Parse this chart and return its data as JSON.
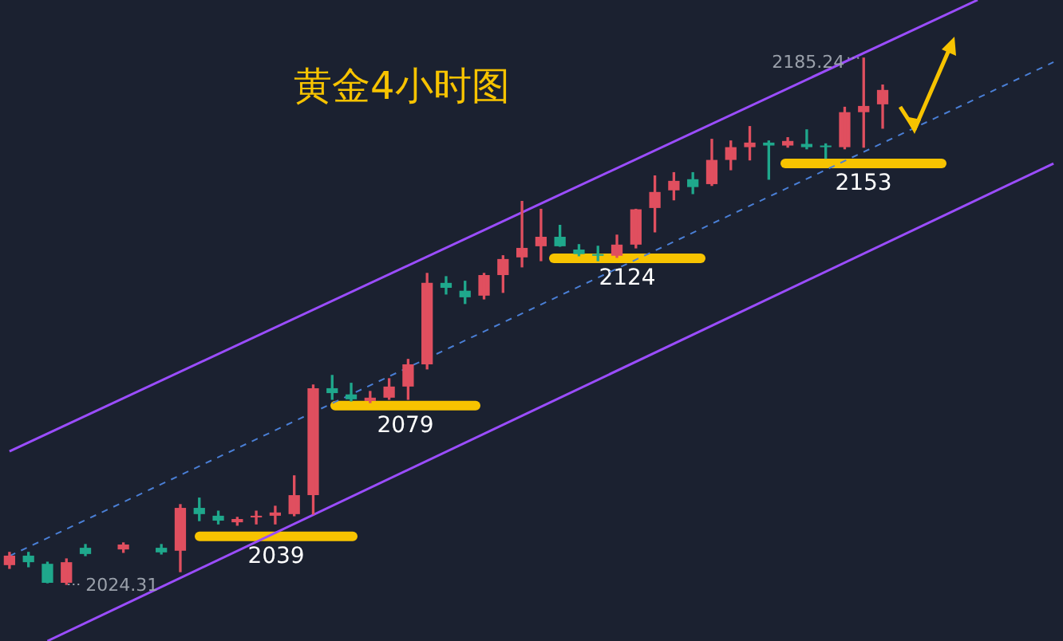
{
  "chart_data": {
    "type": "candlestick",
    "title": "黄金4小时图",
    "categories": [
      null,
      null,
      null,
      null,
      null,
      null,
      null,
      null,
      null,
      null,
      null,
      null,
      null,
      null,
      null,
      null,
      null,
      null,
      null,
      null,
      null,
      null,
      null,
      null,
      null,
      null,
      null,
      null,
      null,
      null,
      null,
      null,
      null,
      null,
      null,
      null,
      null,
      null,
      null,
      null,
      null,
      null,
      null,
      null,
      null,
      null,
      null,
      null,
      null,
      null,
      null,
      null,
      null,
      null,
      null,
      null
    ],
    "ohlc": [
      [
        2030.2,
        2034.1,
        2029.2,
        2033.1
      ],
      [
        2033.1,
        2034.1,
        2029.7,
        2031.1
      ],
      [
        2030.6,
        2031.1,
        2024.8,
        2024.8
      ],
      [
        2024.8,
        2032.1,
        2024.31,
        2031.1
      ],
      [
        2035.5,
        2036.5,
        2033.1,
        2033.6
      ],
      null,
      [
        2035.0,
        2037.0,
        2034.1,
        2036.5
      ],
      null,
      [
        2035.5,
        2036.5,
        2033.6,
        2034.1
      ],
      [
        2034.6,
        2048.7,
        2028.2,
        2047.7
      ],
      [
        2047.7,
        2050.7,
        2043.8,
        2045.8
      ],
      [
        2045.3,
        2046.7,
        2042.8,
        2043.8
      ],
      [
        2043.3,
        2044.8,
        2042.4,
        2044.3
      ],
      [
        2044.8,
        2046.7,
        2042.8,
        2045.3
      ],
      [
        2045.3,
        2048.2,
        2042.8,
        2046.3
      ],
      [
        2045.8,
        2057.5,
        2045.3,
        2051.6
      ],
      [
        2051.6,
        2085.3,
        2045.8,
        2084.3
      ],
      [
        2084.3,
        2088.2,
        2080.9,
        2082.8
      ],
      [
        2082.4,
        2085.8,
        2080.4,
        2080.9
      ],
      [
        2080.4,
        2083.3,
        2079.9,
        2081.4
      ],
      [
        2081.4,
        2087.2,
        2080.9,
        2084.8
      ],
      [
        2084.8,
        2093.1,
        2080.9,
        2091.6
      ],
      [
        2091.6,
        2119.4,
        2090.2,
        2116.5
      ],
      [
        2116.5,
        2118.4,
        2113.1,
        2115.0
      ],
      [
        2114.1,
        2117.0,
        2110.2,
        2112.1
      ],
      [
        2112.6,
        2119.4,
        2111.6,
        2118.9
      ],
      [
        2118.9,
        2124.8,
        2113.6,
        2123.8
      ],
      [
        2124.3,
        2141.4,
        2121.4,
        2127.2
      ],
      [
        2127.7,
        2139.0,
        2123.3,
        2130.6
      ],
      [
        2130.6,
        2134.1,
        2127.7,
        2127.7
      ],
      [
        2126.7,
        2128.2,
        2124.8,
        2125.3
      ],
      [
        2125.3,
        2127.7,
        2123.3,
        2124.8
      ],
      [
        2124.8,
        2131.1,
        2124.3,
        2128.2
      ],
      [
        2128.2,
        2139.0,
        2127.2,
        2139.0
      ],
      [
        2139.4,
        2149.2,
        2132.1,
        2144.3
      ],
      [
        2144.8,
        2150.2,
        2141.9,
        2147.7
      ],
      [
        2148.2,
        2150.2,
        2143.8,
        2145.8
      ],
      [
        2146.7,
        2160.4,
        2146.3,
        2154.1
      ],
      [
        2154.1,
        2159.9,
        2151.1,
        2158.0
      ],
      [
        2158.0,
        2164.3,
        2154.1,
        2159.4
      ],
      [
        2159.4,
        2159.9,
        2148.2,
        2158.5
      ],
      [
        2158.5,
        2160.9,
        2158.0,
        2159.9
      ],
      [
        2159.0,
        2163.3,
        2157.5,
        2158.0
      ],
      [
        2158.5,
        2159.0,
        2154.6,
        2158.0
      ],
      [
        2158.0,
        2170.2,
        2157.5,
        2168.7
      ],
      [
        2168.7,
        2185.24,
        2158.0,
        2170.6
      ],
      [
        2171.1,
        2177.0,
        2163.8,
        2175.5
      ],
      null,
      null,
      null,
      null,
      null,
      null,
      null,
      null,
      null
    ],
    "colors": [
      "#e04f5f",
      "#1fa88c",
      "#1fa88c",
      "#e04f5f",
      "#1fa88c",
      null,
      "#e04f5f",
      null,
      "#1fa88c",
      "#e04f5f",
      "#1fa88c",
      "#1fa88c",
      "#e04f5f",
      "#e04f5f",
      "#e04f5f",
      "#e04f5f",
      "#e04f5f",
      "#1fa88c",
      "#1fa88c",
      "#e04f5f",
      "#e04f5f",
      "#e04f5f",
      "#e04f5f",
      "#1fa88c",
      "#1fa88c",
      "#e04f5f",
      "#e04f5f",
      "#e04f5f",
      "#e04f5f",
      "#1fa88c",
      "#1fa88c",
      "#1fa88c",
      "#e04f5f",
      "#e04f5f",
      "#e04f5f",
      "#e04f5f",
      "#1fa88c",
      "#e04f5f",
      "#e04f5f",
      "#e04f5f",
      "#1fa88c",
      "#e04f5f",
      "#1fa88c",
      "#1fa88c",
      "#e04f5f",
      "#e04f5f",
      "#e04f5f",
      null,
      null,
      null,
      null,
      null,
      null,
      null,
      null,
      null
    ],
    "series": [
      {
        "type": "line",
        "color": "#9b4dff",
        "line_style": "solid",
        "values": [
          2065,
          null,
          null,
          null,
          null,
          null,
          null,
          null,
          null,
          null,
          null,
          null,
          null,
          null,
          null,
          null,
          null,
          null,
          null,
          null,
          null,
          null,
          null,
          null,
          null,
          null,
          null,
          null,
          null,
          null,
          null,
          null,
          null,
          null,
          null,
          null,
          null,
          null,
          null,
          null,
          null,
          null,
          null,
          null,
          null,
          null,
          null,
          null,
          null,
          null,
          null,
          2203,
          null,
          null,
          null,
          null
        ]
      },
      {
        "type": "line",
        "color": "#9b4dff",
        "line_style": "solid",
        "values": [
          null,
          null,
          2007,
          null,
          null,
          null,
          null,
          null,
          null,
          null,
          null,
          null,
          null,
          null,
          null,
          null,
          null,
          null,
          null,
          null,
          null,
          null,
          null,
          null,
          null,
          null,
          null,
          null,
          null,
          null,
          null,
          null,
          null,
          null,
          null,
          null,
          null,
          null,
          null,
          null,
          null,
          null,
          null,
          null,
          null,
          null,
          null,
          null,
          null,
          null,
          null,
          null,
          null,
          null,
          null,
          2153
        ]
      },
      {
        "type": "line",
        "color": "#4a7fd6",
        "line_style": "dashed",
        "values": [
          2033,
          null,
          null,
          null,
          null,
          null,
          null,
          null,
          null,
          null,
          null,
          null,
          null,
          null,
          null,
          null,
          null,
          null,
          null,
          null,
          null,
          null,
          null,
          null,
          null,
          null,
          null,
          null,
          null,
          null,
          null,
          null,
          null,
          null,
          null,
          null,
          null,
          null,
          null,
          null,
          null,
          null,
          null,
          null,
          null,
          null,
          null,
          null,
          null,
          null,
          null,
          null,
          null,
          null,
          null,
          2184
        ]
      }
    ],
    "ref_lines": [
      {
        "axis": "y",
        "value": 2039,
        "label": "2039",
        "color": "#f7c300"
      },
      {
        "axis": "y",
        "value": 2079,
        "label": "2079",
        "color": "#f7c300"
      },
      {
        "axis": "y",
        "value": 2124,
        "label": "2124",
        "color": "#f7c300"
      },
      {
        "axis": "y",
        "value": 2153,
        "label": "2153",
        "color": "#f7c300"
      }
    ],
    "annotations": [
      "2185.24",
      "2024.31"
    ],
    "tick_labels": false,
    "legend": false
  }
}
